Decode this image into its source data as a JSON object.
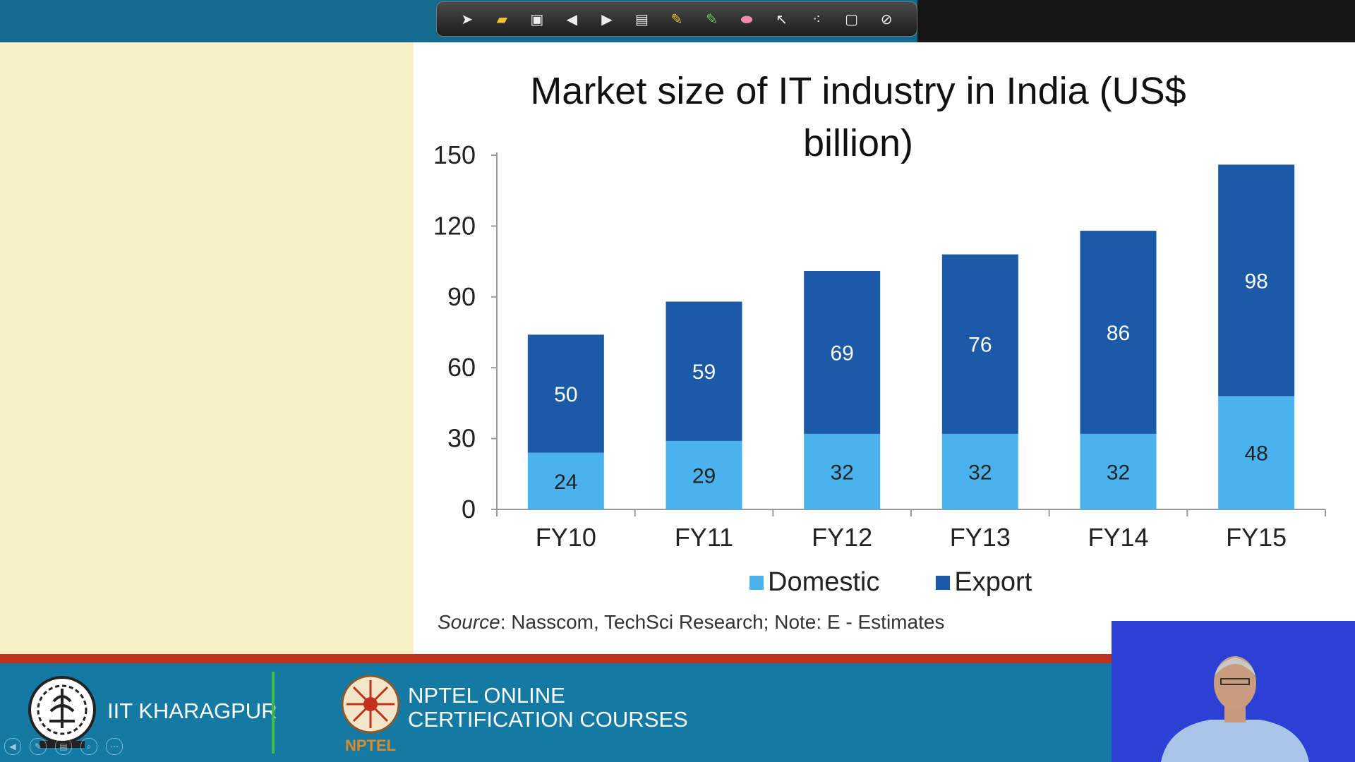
{
  "toolbar": {
    "tools": [
      {
        "icon": "arrow-pointer-icon",
        "glyph": "➤"
      },
      {
        "icon": "folder-icon",
        "glyph": "▰"
      },
      {
        "icon": "save-icon",
        "glyph": "▣"
      },
      {
        "icon": "previous-page-icon",
        "glyph": "◀"
      },
      {
        "icon": "next-page-icon",
        "glyph": "▶"
      },
      {
        "icon": "slides-icon",
        "glyph": "▤"
      },
      {
        "icon": "pen-icon",
        "glyph": "✎"
      },
      {
        "icon": "highlighter-icon",
        "glyph": "✎"
      },
      {
        "icon": "eraser-icon",
        "glyph": "⬬"
      },
      {
        "icon": "cursor-icon",
        "glyph": "↖"
      },
      {
        "icon": "laser-pointer-icon",
        "glyph": "⁖"
      },
      {
        "icon": "clear-icon",
        "glyph": "▢"
      },
      {
        "icon": "close-icon",
        "glyph": "⊘"
      }
    ]
  },
  "chart_data": {
    "type": "bar",
    "stacked": true,
    "title": "Market size of IT industry in India (US$ billion)",
    "title_lines": [
      "Market size of IT industry in India (US$",
      "billion)"
    ],
    "categories": [
      "FY10",
      "FY11",
      "FY12",
      "FY13",
      "FY14",
      "FY15"
    ],
    "series": [
      {
        "name": "Domestic",
        "values": [
          24,
          29,
          32,
          32,
          32,
          48
        ],
        "color": "#4ab3ee"
      },
      {
        "name": "Export",
        "values": [
          50,
          59,
          69,
          76,
          86,
          98
        ],
        "color": "#1b5aa6"
      }
    ],
    "ylim": [
      0,
      150
    ],
    "yticks": [
      "0",
      "30",
      "60",
      "90",
      "120",
      "150"
    ],
    "legend_position": "bottom",
    "grid": false
  },
  "source": {
    "label": "Source",
    "text": ": Nasscom, TechSci Research;  Note: E - Estimates"
  },
  "footer": {
    "institute": "IIT KHARAGPUR",
    "nptel_line1": "NPTEL ONLINE",
    "nptel_line2": "CERTIFICATION COURSES",
    "nptel_small": "NPTEL"
  }
}
